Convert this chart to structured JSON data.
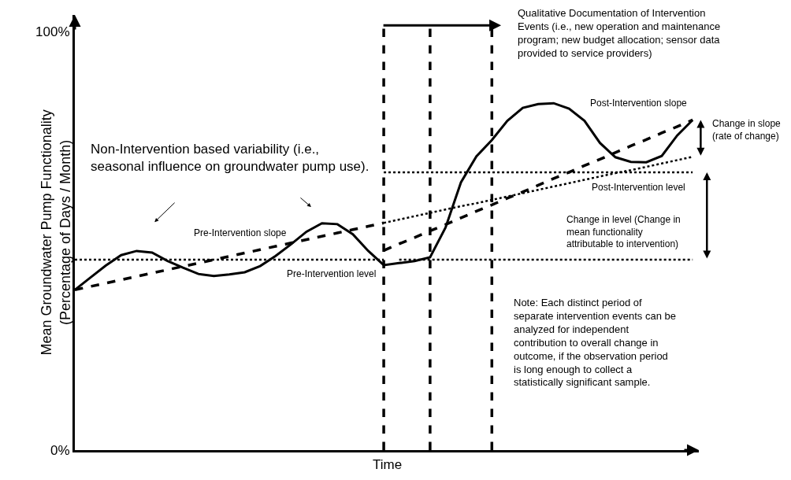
{
  "chart_data": {
    "type": "line",
    "xlabel": "Time",
    "ylabel": "Mean Groundwater Pump Functionality\n(Percentage of Days / Month)",
    "categories": [
      null,
      null,
      null,
      null,
      null,
      null,
      null,
      null,
      null,
      null,
      null,
      null,
      null,
      null,
      null,
      null,
      null,
      null,
      null,
      null,
      null,
      null,
      null,
      null,
      null,
      null,
      null,
      null,
      null,
      null,
      null,
      null,
      null,
      null,
      null,
      null,
      null,
      null,
      null,
      null,
      null
    ],
    "ylim": [
      0,
      104
    ],
    "yticks": [
      {
        "value": 0,
        "label": "0%"
      },
      {
        "value": 100,
        "label": "100%"
      }
    ],
    "tick_labels": "y",
    "grid": false,
    "marker": "none",
    "series": [
      {
        "color": "#000000",
        "line_style": "solid",
        "values": [
          38.3,
          41.2,
          44.1,
          46.6,
          47.6,
          47.2,
          45.2,
          43.6,
          42.1,
          41.6,
          42.0,
          42.5,
          44.0,
          46.4,
          49.2,
          52.2,
          54.2,
          54.0,
          51.6,
          47.6,
          44.2,
          44.7,
          45.2,
          46.1,
          53.2,
          64.0,
          70.2,
          74.1,
          78.7,
          81.8,
          82.7,
          82.9,
          81.6,
          78.7,
          73.4,
          70.0,
          68.9,
          68.8,
          70.3,
          75.2,
          78.9
        ]
      },
      {
        "color": "#000000",
        "line_style": "dashed",
        "values": [
          38.3,
          39.1,
          39.9,
          40.7,
          41.5,
          42.3,
          43.1,
          43.9,
          44.7,
          45.5,
          46.3,
          47.1,
          47.9,
          48.7,
          49.5,
          50.3,
          51.1,
          51.9,
          52.7,
          53.5,
          54.3,
          null,
          null,
          null,
          null,
          null,
          null,
          null,
          null,
          null,
          null,
          null,
          null,
          null,
          null,
          null,
          null,
          null,
          null,
          null,
          null
        ]
      },
      {
        "color": "#000000",
        "line_style": "dashed",
        "values": [
          null,
          null,
          null,
          null,
          null,
          null,
          null,
          null,
          null,
          null,
          null,
          null,
          null,
          null,
          null,
          null,
          null,
          null,
          null,
          null,
          47.7,
          49.3,
          50.8,
          52.4,
          53.9,
          55.5,
          57.1,
          58.6,
          60.2,
          61.7,
          63.3,
          64.9,
          66.4,
          68.0,
          69.5,
          71.1,
          72.7,
          74.2,
          75.8,
          77.3,
          78.9
        ]
      },
      {
        "color": "#000000",
        "line_style": "dotted",
        "values": [
          null,
          null,
          null,
          null,
          null,
          null,
          null,
          null,
          null,
          null,
          null,
          null,
          null,
          null,
          null,
          null,
          null,
          null,
          null,
          null,
          54.3,
          55.1,
          55.9,
          56.7,
          57.5,
          58.3,
          59.0,
          59.8,
          60.6,
          61.4,
          62.2,
          63.0,
          63.8,
          64.6,
          65.4,
          66.2,
          66.9,
          67.7,
          68.5,
          69.3,
          70.1
        ]
      },
      {
        "color": "#000000",
        "line_style": "dotted",
        "values": [
          45.5,
          45.5,
          45.5,
          45.5,
          45.5,
          45.5,
          45.5,
          45.5,
          45.5,
          45.5,
          45.5,
          45.5,
          45.5,
          45.5,
          45.5,
          45.5,
          45.5,
          45.5,
          45.5,
          45.5,
          45.5,
          null,
          null,
          null,
          null,
          null,
          null,
          null,
          null,
          null,
          null,
          null,
          null,
          null,
          null,
          null,
          null,
          null,
          null,
          null,
          null
        ]
      },
      {
        "color": "#000000",
        "line_style": "dotted",
        "values": [
          null,
          null,
          null,
          null,
          null,
          null,
          null,
          null,
          null,
          null,
          null,
          null,
          null,
          null,
          null,
          null,
          null,
          null,
          null,
          null,
          66.4,
          66.4,
          66.4,
          66.4,
          66.4,
          66.4,
          66.4,
          66.4,
          66.4,
          66.4,
          66.4,
          66.4,
          66.4,
          66.4,
          66.4,
          66.4,
          66.4,
          66.4,
          66.4,
          66.4,
          66.4
        ]
      },
      {
        "color": "#000000",
        "line_style": "dotted",
        "values": [
          null,
          null,
          null,
          null,
          null,
          null,
          null,
          null,
          null,
          null,
          null,
          null,
          null,
          null,
          null,
          null,
          null,
          null,
          null,
          null,
          null,
          45.5,
          45.5,
          45.5,
          45.5,
          45.5,
          45.5,
          45.5,
          45.5,
          45.5,
          45.5,
          45.5,
          45.5,
          45.5,
          45.5,
          45.5,
          45.5,
          45.5,
          45.5,
          45.5,
          45.5
        ]
      }
    ],
    "annotations": [
      "Non-Intervention based variability (i.e.,\nseasonal influence on groundwater pump use).",
      "Qualitative Documentation of Intervention\nEvents (i.e., new operation and maintenance\nprogram; new budget allocation; sensor data\nprovided to service providers)",
      "Change in slope\n(rate of change)",
      "Change in level (Change in\nmean functionality\nattributable to intervention)",
      "Note: Each distinct period of\nseparate intervention events can be\nanalyzed for independent\ncontribution to overall change in\noutcome, if the observation period\nis long enough to collect a\nstatistically significant sample.",
      "Pre-Intervention slope",
      "Pre-Intervention level",
      "Post-Intervention slope",
      "Post-Intervention level"
    ]
  }
}
